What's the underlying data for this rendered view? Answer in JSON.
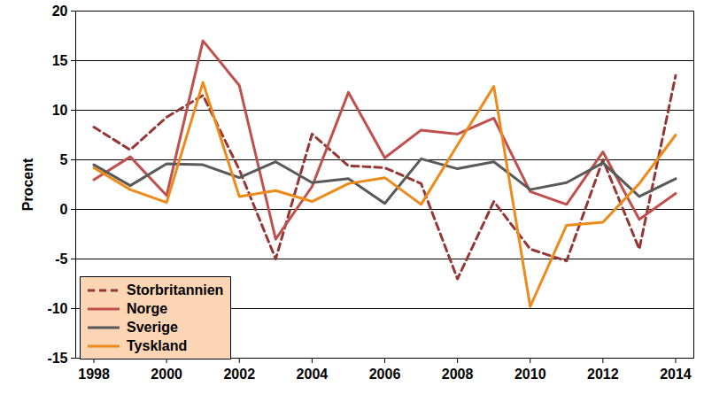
{
  "chart_data": {
    "type": "line",
    "y_label": "Procent",
    "x": [
      1998,
      1999,
      2000,
      2001,
      2002,
      2003,
      2004,
      2005,
      2006,
      2007,
      2008,
      2009,
      2010,
      2011,
      2012,
      2013,
      2014
    ],
    "series": [
      {
        "name": "Storbritannien",
        "color": "#953735",
        "line_style": "dashed",
        "values": [
          8.3,
          6.0,
          9.3,
          11.5,
          4.0,
          -5.0,
          7.6,
          4.4,
          4.2,
          2.6,
          -7.0,
          0.8,
          -4.0,
          -5.2,
          5.0,
          -4.0,
          13.5
        ]
      },
      {
        "name": "Norge",
        "color": "#c0504d",
        "line_style": "solid",
        "values": [
          3.0,
          5.3,
          1.4,
          17.0,
          12.5,
          -3.0,
          2.3,
          11.8,
          5.2,
          8.0,
          7.6,
          9.2,
          1.8,
          0.5,
          5.8,
          -1.0,
          1.6
        ]
      },
      {
        "name": "Sverige",
        "color": "#595959",
        "line_style": "solid",
        "values": [
          4.5,
          2.4,
          4.6,
          4.5,
          3.2,
          4.8,
          2.7,
          3.1,
          0.6,
          5.1,
          4.1,
          4.8,
          2.0,
          2.7,
          4.7,
          1.3,
          3.1
        ]
      },
      {
        "name": "Tyskland",
        "color": "#ed8a1a",
        "line_style": "solid",
        "values": [
          4.2,
          2.0,
          0.7,
          12.8,
          1.3,
          1.9,
          0.8,
          2.6,
          3.2,
          0.5,
          6.5,
          12.4,
          -9.8,
          -1.6,
          -1.3,
          2.6,
          7.5
        ]
      }
    ],
    "xlim": [
      1997.5,
      2014.5
    ],
    "xticks": [
      1998,
      2000,
      2002,
      2004,
      2006,
      2008,
      2010,
      2012,
      2014
    ],
    "ylim": [
      -15,
      20
    ],
    "yticks": [
      -15,
      -10,
      -5,
      0,
      5,
      10,
      15,
      20
    ],
    "grid": true,
    "legend": "bottom-left"
  }
}
